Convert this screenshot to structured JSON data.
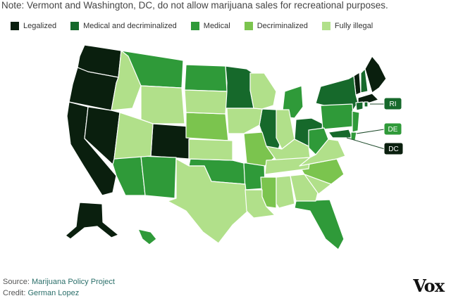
{
  "note": "Note: Vermont and Washington, DC, do not allow marijuana sales for recreational purposes.",
  "legend": [
    {
      "label": "Legalized",
      "color": "#0a1f0e"
    },
    {
      "label": "Medical and decriminalized",
      "color": "#16692b"
    },
    {
      "label": "Medical",
      "color": "#2f9a39"
    },
    {
      "label": "Decriminalized",
      "color": "#7bc44e"
    },
    {
      "label": "Fully illegal",
      "color": "#b1e08a"
    }
  ],
  "small_state_labels": [
    "RI",
    "DE",
    "DC"
  ],
  "footer": {
    "source_label": "Source: ",
    "source_link": "Marijuana Policy Project",
    "credit_label": "Credit: ",
    "credit_link": "German Lopez"
  },
  "logo_text": "Vox"
}
